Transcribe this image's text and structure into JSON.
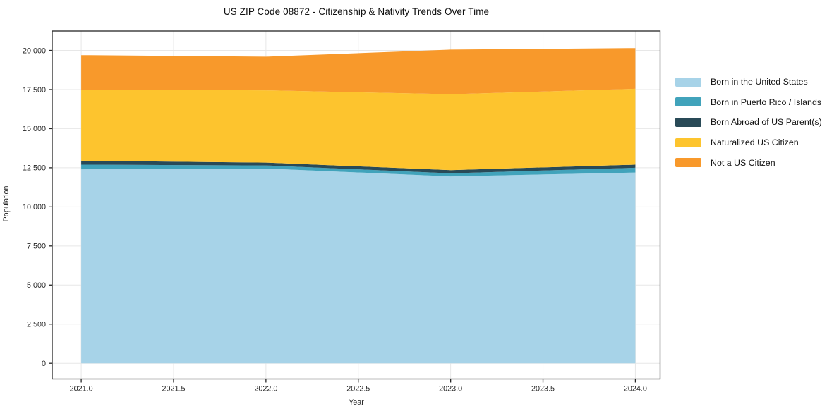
{
  "title": "US ZIP Code 08872 - Citizenship & Nativity Trends Over Time",
  "axes": {
    "xlabel": "Year",
    "ylabel": "Population"
  },
  "chart_data": {
    "type": "area",
    "stacked": true,
    "title": "US ZIP Code 08872 - Citizenship & Nativity Trends Over Time",
    "xlabel": "Year",
    "ylabel": "Population",
    "x": [
      2021,
      2022,
      2023,
      2024
    ],
    "series": [
      {
        "name": "Born in the United States",
        "color": "#a7d3e8",
        "values": [
          12400,
          12450,
          11950,
          12200
        ]
      },
      {
        "name": "Born in Puerto Rico / Islands",
        "color": "#41a3bb",
        "values": [
          300,
          200,
          200,
          300
        ]
      },
      {
        "name": "Born Abroad of US Parent(s)",
        "color": "#294a57",
        "values": [
          250,
          180,
          200,
          200
        ]
      },
      {
        "name": "Naturalized US Citizen",
        "color": "#fdc42e",
        "values": [
          4550,
          4620,
          4850,
          4850
        ]
      },
      {
        "name": "Not a US Citizen",
        "color": "#f8992b",
        "values": [
          2200,
          2150,
          2850,
          2600
        ]
      }
    ],
    "totals": [
      19700,
      19600,
      20050,
      20150
    ],
    "x_ticks": [
      2021.0,
      2021.5,
      2022.0,
      2022.5,
      2023.0,
      2023.5,
      2024.0
    ],
    "x_tick_labels": [
      "2021.0",
      "2021.5",
      "2022.0",
      "2022.5",
      "2023.0",
      "2023.5",
      "2024.0"
    ],
    "y_ticks": [
      0,
      2500,
      5000,
      7500,
      10000,
      12500,
      15000,
      17500,
      20000
    ],
    "y_tick_labels": [
      "0",
      "2,500",
      "5,000",
      "7,500",
      "10,000",
      "12,500",
      "15,000",
      "17,500",
      "20,000"
    ],
    "xlim": [
      2020.843,
      2024.134
    ],
    "ylim": [
      -1005,
      21240
    ],
    "grid": true,
    "grid_color": "#e7e7e7",
    "frame_color": "#262626",
    "legend_position": "right"
  }
}
